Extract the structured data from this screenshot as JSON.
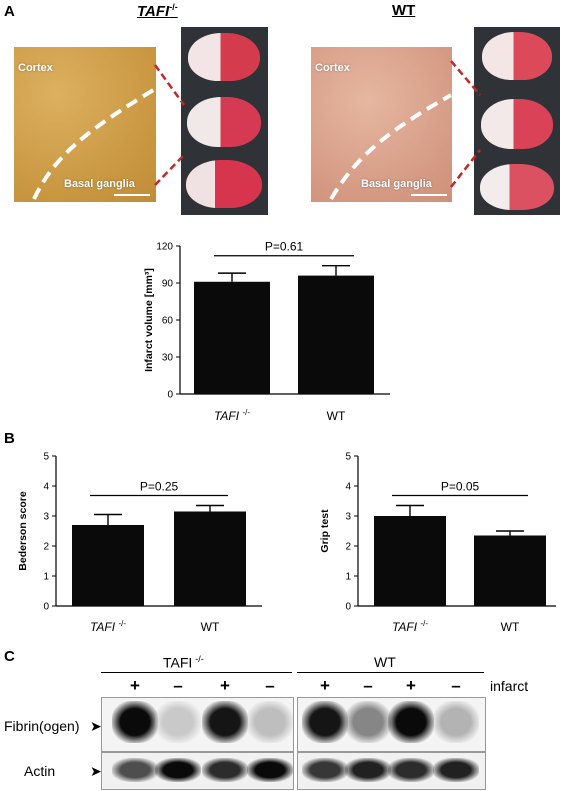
{
  "panels": {
    "a": "A",
    "b": "B",
    "c": "C"
  },
  "headers": {
    "tafi": "TAFI",
    "tafi_sup": "-/-",
    "wt": "WT"
  },
  "histology": {
    "cortex": "Cortex",
    "basal_ganglia": "Basal ganglia"
  },
  "colors": {
    "bar": "#0a0a0a",
    "dash_red": "#c62828",
    "tissue_left": "#d6a54e",
    "tissue_right": "#e0a58e",
    "brain_bg": "#2f3236"
  },
  "western": {
    "tafi_label": "TAFI",
    "tafi_sup": "-/-",
    "wt_label": "WT",
    "lane_signs": [
      "+",
      "–",
      "+",
      "–",
      "+",
      "–",
      "+",
      "–"
    ],
    "infarct_label": "infarct",
    "fibrin_label": "Fibrin(ogen)",
    "actin_label": "Actin",
    "fibrin_intensity": [
      1.0,
      0.15,
      0.95,
      0.2,
      0.95,
      0.45,
      1.0,
      0.25
    ],
    "actin_intensity": [
      0.7,
      1.0,
      0.85,
      1.0,
      0.8,
      0.9,
      0.85,
      0.9
    ]
  },
  "chart_data": [
    {
      "type": "bar",
      "categories": [
        "TAFI -/-",
        "WT"
      ],
      "values": [
        91,
        96
      ],
      "errors": [
        7,
        8
      ],
      "ylabel": "Infarct volume [mm³]",
      "ylim": [
        0,
        120
      ],
      "yticks": [
        0,
        30,
        60,
        90,
        120
      ],
      "annotation": "P=0.61"
    },
    {
      "type": "bar",
      "categories": [
        "TAFI -/-",
        "WT"
      ],
      "values": [
        2.7,
        3.15
      ],
      "errors": [
        0.35,
        0.2
      ],
      "ylabel": "Bederson score",
      "ylim": [
        0,
        5
      ],
      "yticks": [
        0,
        1,
        2,
        3,
        4,
        5
      ],
      "annotation": "P=0.25"
    },
    {
      "type": "bar",
      "categories": [
        "TAFI -/-",
        "WT"
      ],
      "values": [
        3.0,
        2.35
      ],
      "errors": [
        0.35,
        0.15
      ],
      "ylabel": "Grip test",
      "ylim": [
        0,
        5
      ],
      "yticks": [
        0,
        1,
        2,
        3,
        4,
        5
      ],
      "annotation": "P=0.05"
    }
  ]
}
